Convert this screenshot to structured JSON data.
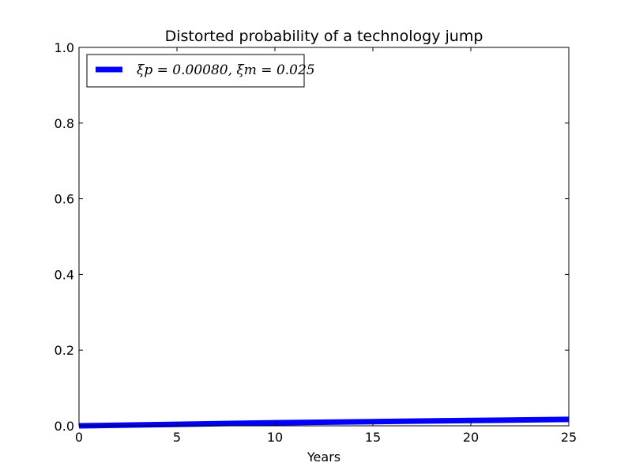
{
  "chart_data": {
    "type": "line",
    "title": "Distorted probability of a technology jump",
    "xlabel": "Years",
    "ylabel": "",
    "xlim": [
      0,
      25
    ],
    "ylim": [
      0,
      1.0
    ],
    "x_ticks": [
      "0",
      "5",
      "10",
      "15",
      "20",
      "25"
    ],
    "y_ticks": [
      "0.0",
      "0.2",
      "0.4",
      "0.6",
      "0.8",
      "1.0"
    ],
    "grid": false,
    "legend_position": "upper-left",
    "series": [
      {
        "name": "ξp = 0.00080, ξm = 0.025",
        "color": "#0000ff",
        "x": [
          0,
          5,
          10,
          15,
          20,
          25
        ],
        "y": [
          0.0,
          0.004,
          0.008,
          0.011,
          0.014,
          0.017
        ]
      }
    ]
  }
}
